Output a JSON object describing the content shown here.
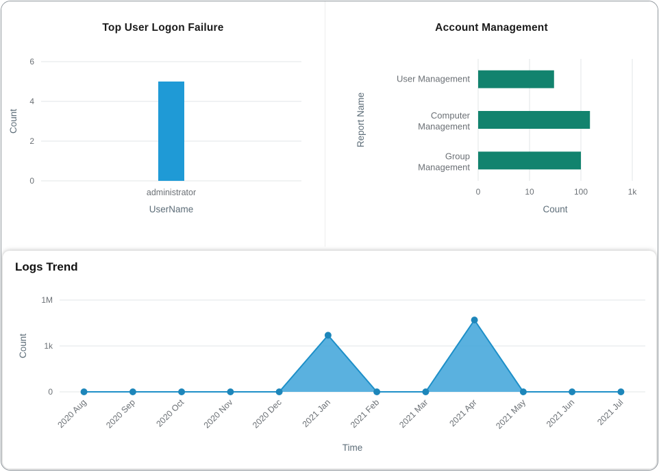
{
  "chart_data": [
    {
      "id": "top-user-logon-failure",
      "type": "bar",
      "title": "Top User Logon Failure",
      "categories": [
        "administrator"
      ],
      "values": [
        5
      ],
      "xlabel": "UserName",
      "ylabel": "Count",
      "yticks": [
        0,
        2,
        4,
        6
      ],
      "ylim": [
        0,
        6
      ],
      "scale": "linear",
      "grid": true,
      "legend": false,
      "bar_color": "#1f9ad6"
    },
    {
      "id": "account-management",
      "type": "horizontal-bar",
      "title": "Account Management",
      "categories": [
        "User Management",
        "Computer Management",
        "Group Management"
      ],
      "values": [
        30,
        150,
        100
      ],
      "xlabel": "Count",
      "ylabel": "Report Name",
      "xticks": [
        0,
        10,
        100,
        1000
      ],
      "xtick_labels": [
        "0",
        "10",
        "100",
        "1k"
      ],
      "scale": "symlog",
      "grid": true,
      "legend": false,
      "bar_color": "#12836e"
    },
    {
      "id": "logs-trend",
      "type": "area",
      "title": "Logs Trend",
      "x": [
        "2020 Aug",
        "2020 Sep",
        "2020 Oct",
        "2020 Nov",
        "2020 Dec",
        "2021 Jan",
        "2021 Feb",
        "2021 Mar",
        "2021 Apr",
        "2021 May",
        "2021 Jun",
        "2021 Jul"
      ],
      "values": [
        0,
        0,
        0,
        0,
        0,
        5000,
        0,
        0,
        50000,
        0,
        0,
        0
      ],
      "xlabel": "Time",
      "ylabel": "Count",
      "yticks": [
        0,
        1000,
        1000000
      ],
      "ytick_labels": [
        "0",
        "1k",
        "1M"
      ],
      "scale": "symlog",
      "grid": true,
      "legend": false,
      "line_color": "#1d8fc8",
      "fill_color": "#48a9db",
      "marker_color": "#1d86ba"
    }
  ],
  "theme": {
    "title_color": "#1b1b1b",
    "axis_label_color": "#5d6d78",
    "tick_color": "#6b7075",
    "grid_color": "#e1e4e7",
    "card_background": "#ffffff"
  }
}
